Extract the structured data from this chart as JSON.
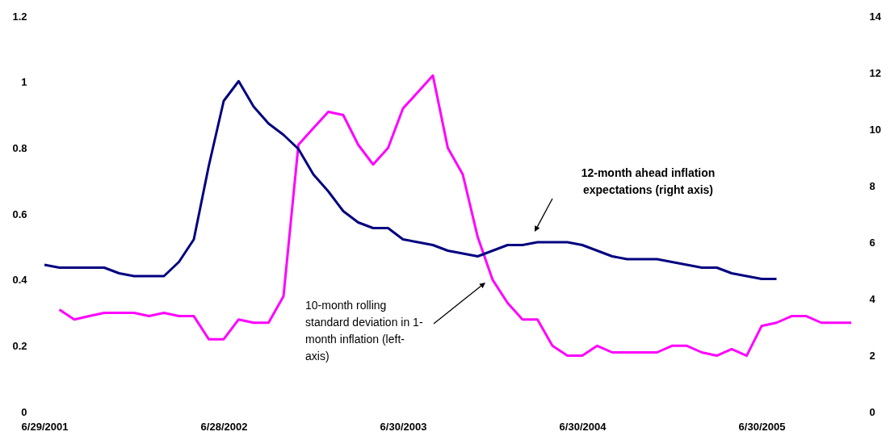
{
  "chart_data": {
    "type": "line",
    "categories": [
      "6/29/2001",
      null,
      null,
      null,
      null,
      null,
      null,
      null,
      null,
      null,
      null,
      null,
      "6/28/2002",
      null,
      null,
      null,
      null,
      null,
      null,
      null,
      null,
      null,
      null,
      null,
      "6/30/2003",
      null,
      null,
      null,
      null,
      null,
      null,
      null,
      null,
      null,
      null,
      null,
      "6/30/2004",
      null,
      null,
      null,
      null,
      null,
      null,
      null,
      null,
      null,
      null,
      null,
      "6/30/2005",
      null,
      null,
      null,
      null,
      null,
      null
    ],
    "series": [
      {
        "color": "#ff00ff",
        "axis": "y",
        "values": [
          null,
          0.31,
          0.28,
          0.29,
          0.3,
          0.3,
          0.3,
          0.29,
          0.3,
          0.29,
          0.29,
          0.22,
          0.22,
          0.28,
          0.27,
          0.27,
          0.35,
          0.81,
          0.86,
          0.91,
          0.9,
          0.81,
          0.75,
          0.8,
          0.92,
          0.97,
          1.02,
          0.8,
          0.72,
          0.53,
          0.4,
          0.33,
          0.28,
          0.28,
          0.2,
          0.17,
          0.17,
          0.2,
          0.18,
          0.18,
          0.18,
          0.18,
          0.2,
          0.2,
          0.18,
          0.17,
          0.19,
          0.17,
          0.26,
          0.27,
          0.29,
          0.29,
          0.27,
          0.27,
          0.27
        ]
      },
      {
        "color": "#000080",
        "axis": "y2",
        "values": [
          5.2,
          5.1,
          5.1,
          5.1,
          5.1,
          4.9,
          4.8,
          4.8,
          4.8,
          5.3,
          6.1,
          8.7,
          11,
          11.7,
          10.8,
          10.2,
          9.8,
          9.3,
          8.4,
          7.8,
          7.1,
          6.7,
          6.5,
          6.5,
          6.1,
          6,
          5.9,
          5.7,
          5.6,
          5.5,
          5.7,
          5.9,
          5.9,
          6,
          6,
          6,
          5.9,
          5.7,
          5.5,
          5.4,
          5.4,
          5.4,
          5.3,
          5.2,
          5.1,
          5.1,
          4.9,
          4.8,
          4.7,
          4.7,
          null,
          null,
          null,
          null,
          null
        ]
      }
    ],
    "ylim": [
      0,
      1.2
    ],
    "yticks": [
      0,
      0.2,
      0.4,
      0.6,
      0.8,
      1,
      1.2
    ],
    "y2lim": [
      0,
      14
    ],
    "y2ticks": [
      0,
      2,
      4,
      6,
      8,
      10,
      12,
      14
    ],
    "annotations": [
      "10-month rolling standard deviation in 1-month inflation (left-axis)",
      "12-month ahead inflation expectations (right axis)"
    ]
  }
}
